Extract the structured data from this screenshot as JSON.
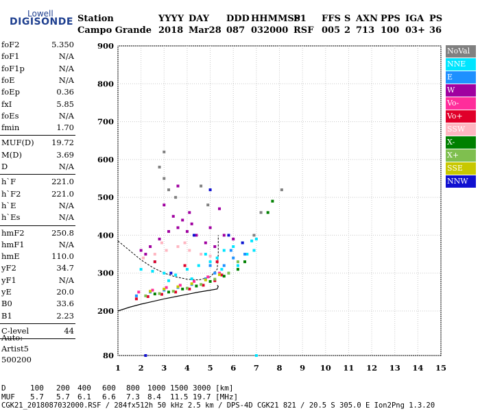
{
  "logo": {
    "line1": "Lowell",
    "line2": "DIGISONDE"
  },
  "header": {
    "labels": [
      "Station",
      "YYYY",
      "DAY",
      "DDD",
      "HHMMSS",
      "P1",
      "FFS",
      "S",
      "AXN",
      "PPS",
      "IGA",
      "PS"
    ],
    "values": [
      "Campo Grande",
      "2018",
      "Mar28",
      "087",
      "032000",
      "RSF",
      "005",
      "2",
      "713",
      "100",
      "03+",
      "36"
    ]
  },
  "params": {
    "group1": [
      {
        "name": "foF2",
        "value": "5.350"
      },
      {
        "name": "foF1",
        "value": "N/A"
      },
      {
        "name": "foF1p",
        "value": "N/A"
      },
      {
        "name": "foE",
        "value": "N/A"
      },
      {
        "name": "foEp",
        "value": "0.36"
      },
      {
        "name": "fxI",
        "value": "5.85"
      },
      {
        "name": "foEs",
        "value": "N/A"
      },
      {
        "name": "fmin",
        "value": "1.70"
      }
    ],
    "group2": [
      {
        "name": "MUF(D)",
        "value": "19.72"
      },
      {
        "name": "M(D)",
        "value": "3.69"
      },
      {
        "name": "D",
        "value": "N/A"
      }
    ],
    "group3": [
      {
        "name": "h`F",
        "value": "221.0"
      },
      {
        "name": "h`F2",
        "value": "221.0"
      },
      {
        "name": "h`E",
        "value": "N/A"
      },
      {
        "name": "h`Es",
        "value": "N/A"
      }
    ],
    "group4": [
      {
        "name": "hmF2",
        "value": "250.8"
      },
      {
        "name": "hmF1",
        "value": "N/A"
      },
      {
        "name": "hmE",
        "value": "110.0"
      },
      {
        "name": "yF2",
        "value": "34.7"
      },
      {
        "name": "yF1",
        "value": "N/A"
      },
      {
        "name": "yE",
        "value": "20.0"
      },
      {
        "name": "B0",
        "value": "33.6"
      },
      {
        "name": "B1",
        "value": "2.23"
      }
    ],
    "group5": [
      {
        "name": "C-level",
        "value": "44"
      }
    ]
  },
  "auto": {
    "line1": "Auto:",
    "line2": "Artist5",
    "line3": "500200"
  },
  "legend": [
    {
      "label": "NoVal",
      "color": "#808080"
    },
    {
      "label": "NNE",
      "color": "#00e5ff"
    },
    {
      "label": "E",
      "color": "#1e90ff"
    },
    {
      "label": "W",
      "color": "#a000a0"
    },
    {
      "label": "Vo-",
      "color": "#ff2d9b"
    },
    {
      "label": "Vo+",
      "color": "#e0002a"
    },
    {
      "label": "SSW",
      "color": "#ffb6c1"
    },
    {
      "label": "X-",
      "color": "#008000"
    },
    {
      "label": "X+",
      "color": "#7fbf4f"
    },
    {
      "label": "SSE",
      "color": "#c8c800"
    },
    {
      "label": "NNW",
      "color": "#1010d0"
    }
  ],
  "chart_data": {
    "type": "scatter",
    "title": "",
    "xlabel": "",
    "ylabel": "",
    "xlim": [
      1,
      15
    ],
    "ylim": [
      80,
      900
    ],
    "x_ticks": [
      1,
      2,
      3,
      4,
      5,
      6,
      7,
      8,
      9,
      10,
      11,
      12,
      13,
      14,
      15
    ],
    "y_ticks": [
      80,
      200,
      300,
      400,
      500,
      600,
      700,
      800,
      900
    ],
    "grid": true,
    "legend_position": "right",
    "series": [
      {
        "name": "NoVal",
        "points": [
          [
            3.0,
            550
          ],
          [
            3.2,
            520
          ],
          [
            3.5,
            500
          ],
          [
            4.6,
            530
          ],
          [
            4.9,
            480
          ],
          [
            6.9,
            400
          ],
          [
            7.2,
            460
          ],
          [
            8.1,
            520
          ],
          [
            3.0,
            620
          ],
          [
            2.8,
            580
          ]
        ]
      },
      {
        "name": "NNE",
        "points": [
          [
            2.0,
            310
          ],
          [
            2.5,
            305
          ],
          [
            3.0,
            300
          ],
          [
            3.5,
            295
          ],
          [
            4.0,
            310
          ],
          [
            4.5,
            320
          ],
          [
            5.0,
            330
          ],
          [
            5.3,
            340
          ],
          [
            5.6,
            360
          ],
          [
            6.0,
            370
          ],
          [
            6.4,
            380
          ],
          [
            6.8,
            385
          ],
          [
            7.0,
            390
          ],
          [
            3.2,
            280
          ],
          [
            4.2,
            285
          ],
          [
            5.8,
            300
          ],
          [
            6.2,
            320
          ],
          [
            6.6,
            350
          ],
          [
            2.6,
            330
          ],
          [
            4.8,
            350
          ],
          [
            5.5,
            310
          ],
          [
            6.9,
            360
          ],
          [
            7.0,
            80
          ]
        ]
      },
      {
        "name": "E",
        "points": [
          [
            1.8,
            240
          ],
          [
            2.4,
            250
          ],
          [
            3.0,
            255
          ],
          [
            3.6,
            262
          ],
          [
            4.2,
            270
          ],
          [
            4.8,
            285
          ],
          [
            5.2,
            300
          ],
          [
            5.6,
            320
          ],
          [
            6.0,
            340
          ],
          [
            6.5,
            350
          ],
          [
            5.9,
            360
          ],
          [
            5.0,
            320
          ]
        ]
      },
      {
        "name": "W",
        "points": [
          [
            2.0,
            360
          ],
          [
            2.4,
            370
          ],
          [
            2.8,
            390
          ],
          [
            3.2,
            410
          ],
          [
            3.6,
            420
          ],
          [
            4.0,
            410
          ],
          [
            4.4,
            400
          ],
          [
            4.8,
            380
          ],
          [
            5.2,
            370
          ],
          [
            3.4,
            450
          ],
          [
            3.8,
            440
          ],
          [
            4.2,
            430
          ],
          [
            5.0,
            420
          ],
          [
            5.6,
            400
          ],
          [
            6.0,
            390
          ],
          [
            3.0,
            480
          ],
          [
            3.6,
            530
          ],
          [
            4.1,
            460
          ],
          [
            5.4,
            470
          ],
          [
            2.2,
            350
          ]
        ]
      },
      {
        "name": "Vo-",
        "points": [
          [
            1.9,
            250
          ],
          [
            2.5,
            255
          ],
          [
            3.1,
            262
          ],
          [
            3.7,
            268
          ],
          [
            4.3,
            278
          ],
          [
            4.9,
            290
          ],
          [
            5.4,
            300
          ]
        ]
      },
      {
        "name": "Vo+",
        "points": [
          [
            1.8,
            232
          ],
          [
            2.3,
            238
          ],
          [
            2.9,
            244
          ],
          [
            3.5,
            250
          ],
          [
            4.1,
            258
          ],
          [
            4.7,
            268
          ],
          [
            5.2,
            280
          ],
          [
            5.5,
            295
          ],
          [
            5.3,
            330
          ],
          [
            2.6,
            330
          ],
          [
            3.9,
            320
          ]
        ]
      },
      {
        "name": "SSW",
        "points": [
          [
            2.1,
            340
          ],
          [
            2.6,
            350
          ],
          [
            3.1,
            360
          ],
          [
            3.6,
            370
          ],
          [
            4.1,
            360
          ],
          [
            4.6,
            350
          ],
          [
            5.0,
            345
          ],
          [
            2.9,
            380
          ],
          [
            3.9,
            380
          ]
        ]
      },
      {
        "name": "X-",
        "points": [
          [
            2.6,
            245
          ],
          [
            3.2,
            250
          ],
          [
            3.8,
            258
          ],
          [
            4.4,
            266
          ],
          [
            5.0,
            278
          ],
          [
            5.6,
            292
          ],
          [
            6.2,
            310
          ],
          [
            6.5,
            330
          ],
          [
            7.5,
            460
          ],
          [
            7.7,
            490
          ]
        ]
      },
      {
        "name": "X+",
        "points": [
          [
            2.2,
            240
          ],
          [
            2.8,
            246
          ],
          [
            3.4,
            252
          ],
          [
            4.0,
            260
          ],
          [
            4.6,
            270
          ],
          [
            5.2,
            284
          ],
          [
            5.8,
            300
          ],
          [
            6.2,
            330
          ]
        ]
      },
      {
        "name": "SSE",
        "points": [
          [
            2.4,
            252
          ],
          [
            3.0,
            258
          ],
          [
            3.6,
            264
          ],
          [
            4.2,
            272
          ],
          [
            4.8,
            282
          ],
          [
            5.4,
            296
          ]
        ]
      },
      {
        "name": "NNW",
        "points": [
          [
            2.2,
            80
          ],
          [
            5.0,
            520
          ],
          [
            5.8,
            400
          ],
          [
            6.4,
            380
          ],
          [
            4.3,
            400
          ],
          [
            3.3,
            300
          ]
        ]
      }
    ],
    "h_profile": [
      [
        1.0,
        385
      ],
      [
        1.5,
        360
      ],
      [
        2.0,
        335
      ],
      [
        2.5,
        315
      ],
      [
        3.0,
        300
      ],
      [
        3.5,
        290
      ],
      [
        4.0,
        284
      ],
      [
        4.5,
        282
      ],
      [
        5.0,
        290
      ],
      [
        5.3,
        310
      ],
      [
        5.35,
        350
      ],
      [
        5.35,
        400
      ]
    ],
    "h_trace": [
      [
        1.0,
        200
      ],
      [
        1.5,
        210
      ],
      [
        2.0,
        218
      ],
      [
        2.5,
        225
      ],
      [
        3.0,
        232
      ],
      [
        3.5,
        238
      ],
      [
        4.0,
        244
      ],
      [
        4.5,
        250
      ],
      [
        5.0,
        255
      ],
      [
        5.3,
        258
      ],
      [
        5.35,
        265
      ],
      [
        5.3,
        268
      ]
    ]
  },
  "footer": {
    "d_row": {
      "label": "D",
      "values": [
        "100",
        "200",
        "400",
        "600",
        "800",
        "1000",
        "1500",
        "3000"
      ],
      "unit": "[km]"
    },
    "muf_row": {
      "label": "MUF",
      "values": [
        "5.7",
        "5.7",
        "6.1",
        "6.6",
        "7.3",
        "8.4",
        "11.5",
        "19.7"
      ],
      "unit": "[MHz]"
    },
    "info": "CGK21_2018087032000.RSF / 284fx512h 50 kHz 2.5 km / DPS-4D CGK21 821 / 20.5 S 305.0 E Ion2Png 1.3.20"
  }
}
